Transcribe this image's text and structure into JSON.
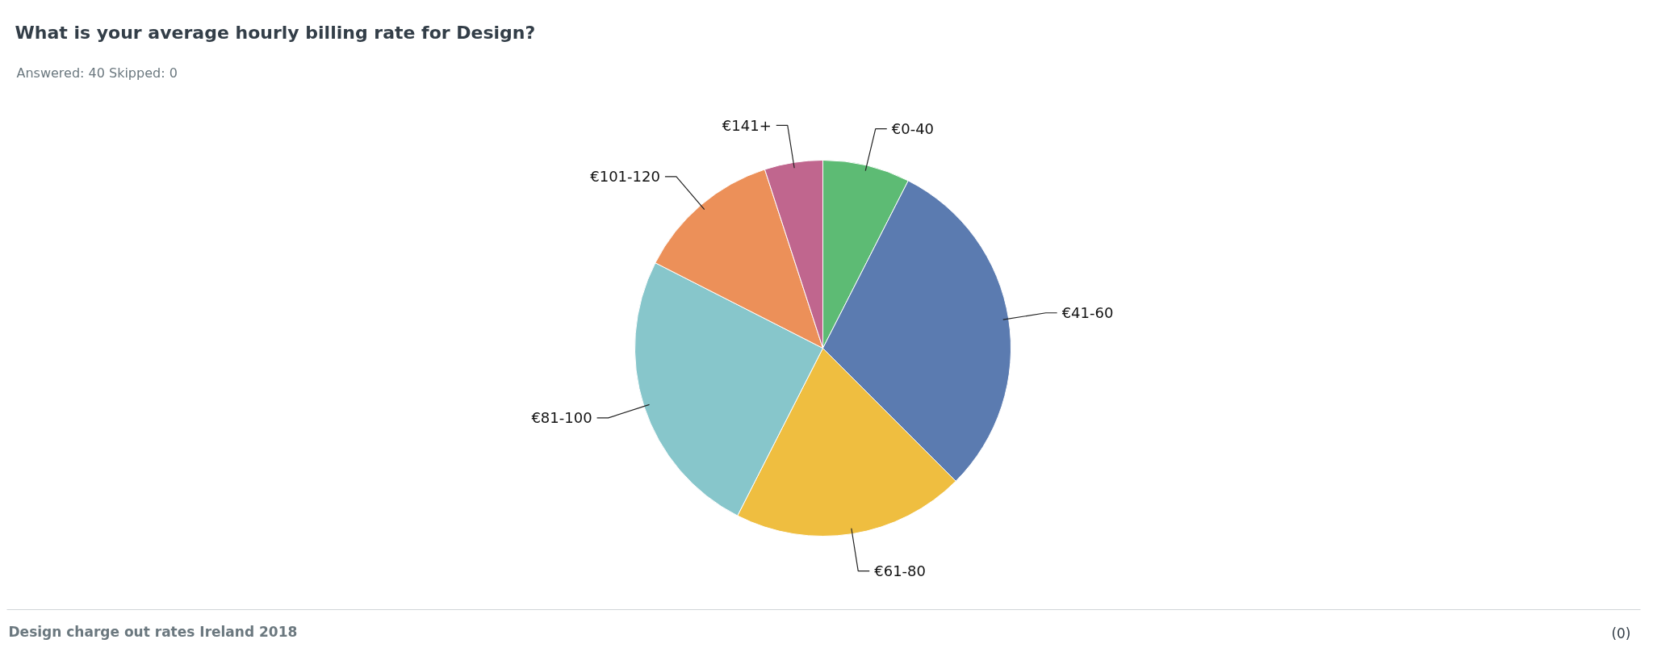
{
  "chart_data": {
    "type": "pie",
    "title": "What is your average hourly billing rate for Design?",
    "subtitle": "Answered: 40    Skipped: 0",
    "categories": [
      "€0-40",
      "€41-60",
      "€61-80",
      "€81-100",
      "€101-120",
      "€141+"
    ],
    "values": [
      7.5,
      30,
      20,
      25,
      12.5,
      5
    ],
    "colors": [
      "#5dbb74",
      "#5b7bb0",
      "#efbe40",
      "#87c6cb",
      "#ec9059",
      "#c0668e"
    ],
    "annotations": [
      "Design charge out rates Ireland 2018",
      "(0)"
    ]
  }
}
